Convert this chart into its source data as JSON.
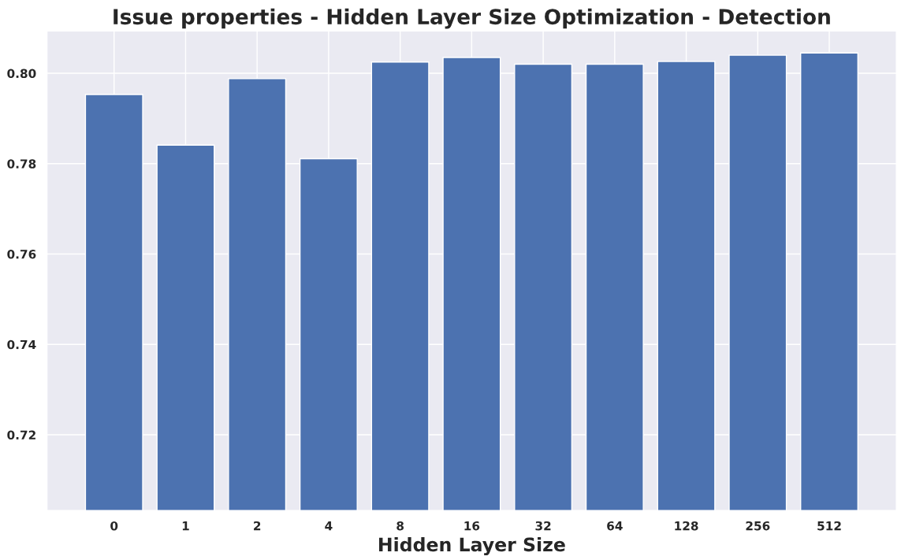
{
  "chart_data": {
    "type": "bar",
    "title": "Issue properties - Hidden Layer Size Optimization - Detection",
    "xlabel": "Hidden Layer Size",
    "categories": [
      "0",
      "1",
      "2",
      "4",
      "8",
      "16",
      "32",
      "64",
      "128",
      "256",
      "512"
    ],
    "values": [
      0.7953,
      0.7841,
      0.7988,
      0.7811,
      0.8025,
      0.8035,
      0.802,
      0.802,
      0.8026,
      0.804,
      0.8045
    ],
    "color": "#4c72b0",
    "ylim": [
      0.7032,
      0.8094
    ],
    "yticks": [
      0.72,
      0.74,
      0.76,
      0.78,
      {
        "value": 0.8,
        "label": "0.80"
      }
    ],
    "grid": true
  }
}
